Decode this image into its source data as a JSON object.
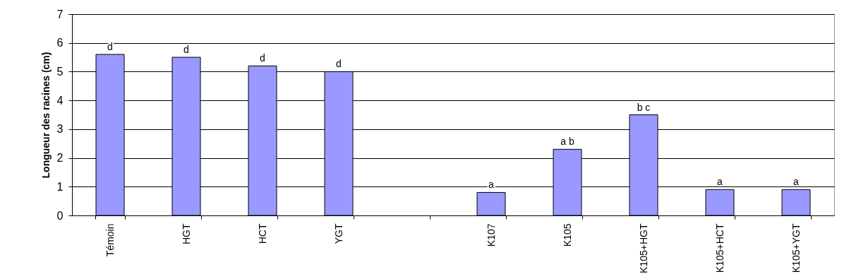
{
  "chart_data": {
    "type": "bar",
    "ylabel": "Longueur des racines (cm)",
    "categories": [
      "Témoin",
      "HGT",
      "HCT",
      "YGT",
      null,
      "K107",
      "K105",
      "K105+HGT",
      "K105+HCT",
      "K105+YGT"
    ],
    "values": [
      5.6,
      5.5,
      5.2,
      5.0,
      null,
      0.8,
      2.3,
      3.5,
      0.9,
      0.9
    ],
    "value_labels": [
      "d",
      "d",
      "d",
      "d",
      null,
      "a",
      "a b",
      "b c",
      "a",
      "a"
    ],
    "color": "#9999ff",
    "ylim": [
      0,
      7
    ],
    "yticks": [
      0,
      1,
      2,
      3,
      4,
      5,
      6,
      7
    ],
    "grid": "y"
  }
}
